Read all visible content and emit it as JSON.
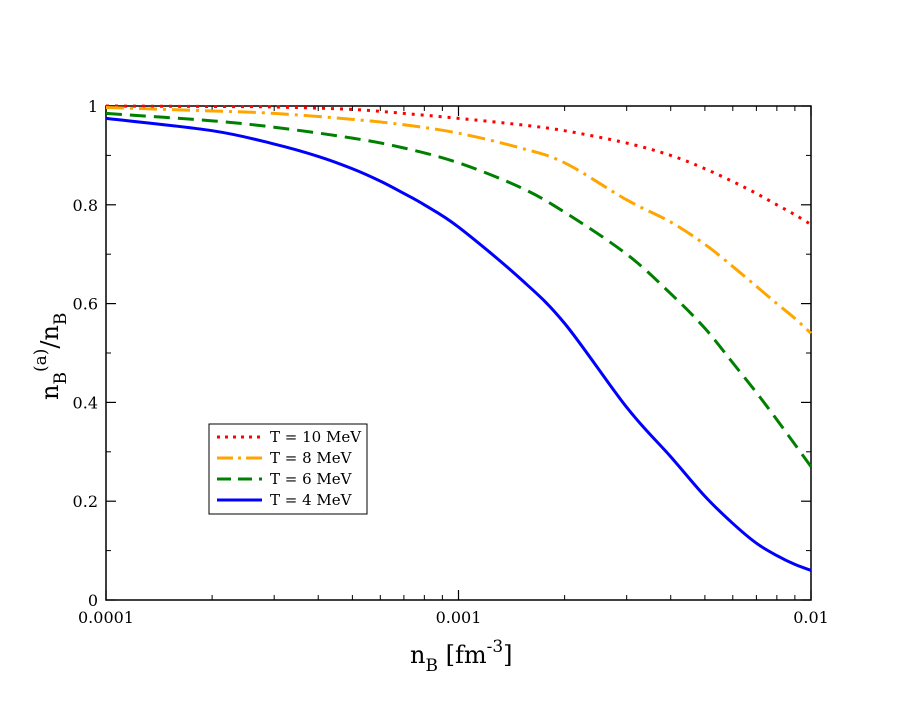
{
  "chart_data": {
    "type": "line",
    "title": "",
    "xscale": "log",
    "xlim": [
      0.0001,
      0.01
    ],
    "ylim": [
      0,
      1
    ],
    "xticks": [
      {
        "value": 0.0001,
        "label": "0.0001"
      },
      {
        "value": 0.001,
        "label": "0.001"
      },
      {
        "value": 0.01,
        "label": "0.01"
      }
    ],
    "yticks": [
      {
        "value": 0,
        "label": "0"
      },
      {
        "value": 0.2,
        "label": "0.2"
      },
      {
        "value": 0.4,
        "label": "0.4"
      },
      {
        "value": 0.6,
        "label": "0.6"
      },
      {
        "value": 0.8,
        "label": "0.8"
      },
      {
        "value": 1,
        "label": "1"
      }
    ],
    "xlabel": {
      "base": "n",
      "sub": "B",
      "rest": " [fm",
      "sup": "-3",
      "close": "]"
    },
    "ylabel": {
      "base": "n",
      "sub": "B",
      "sup": "(a)",
      "slash": "/n",
      "sub2": "B"
    },
    "series": [
      {
        "name": "T = 10 MeV",
        "color": "#ff0000",
        "style": "dotted",
        "x": [
          0.0001,
          0.0002,
          0.0003,
          0.0005,
          0.0007,
          0.001,
          0.0015,
          0.002,
          0.003,
          0.004,
          0.005,
          0.006,
          0.007,
          0.008,
          0.009,
          0.01
        ],
        "y": [
          1.0,
          0.999,
          0.998,
          0.993,
          0.985,
          0.975,
          0.962,
          0.95,
          0.925,
          0.9,
          0.873,
          0.847,
          0.823,
          0.8,
          0.78,
          0.76
        ]
      },
      {
        "name": "T = 8 MeV",
        "color": "#ffa500",
        "style": "dashdot",
        "x": [
          0.0001,
          0.0002,
          0.0003,
          0.0005,
          0.0007,
          0.001,
          0.0015,
          0.002,
          0.003,
          0.004,
          0.005,
          0.006,
          0.007,
          0.008,
          0.009,
          0.01
        ],
        "y": [
          0.997,
          0.99,
          0.985,
          0.973,
          0.962,
          0.945,
          0.915,
          0.885,
          0.81,
          0.765,
          0.72,
          0.675,
          0.635,
          0.6,
          0.57,
          0.54
        ]
      },
      {
        "name": "T = 6 MeV",
        "color": "#008000",
        "style": "dashed",
        "x": [
          0.0001,
          0.0002,
          0.0003,
          0.0005,
          0.0007,
          0.001,
          0.0015,
          0.002,
          0.003,
          0.004,
          0.005,
          0.006,
          0.007,
          0.008,
          0.009,
          0.01
        ],
        "y": [
          0.985,
          0.97,
          0.957,
          0.935,
          0.915,
          0.885,
          0.835,
          0.785,
          0.7,
          0.62,
          0.55,
          0.48,
          0.42,
          0.365,
          0.315,
          0.27
        ]
      },
      {
        "name": "T = 4 MeV",
        "color": "#0000ff",
        "style": "solid",
        "x": [
          0.0001,
          0.0002,
          0.0003,
          0.0004,
          0.0005,
          0.0006,
          0.0007,
          0.0008,
          0.001,
          0.0015,
          0.002,
          0.003,
          0.004,
          0.005,
          0.006,
          0.007,
          0.008,
          0.009,
          0.01
        ],
        "y": [
          0.975,
          0.95,
          0.923,
          0.898,
          0.873,
          0.848,
          0.823,
          0.8,
          0.755,
          0.65,
          0.56,
          0.39,
          0.29,
          0.21,
          0.155,
          0.115,
          0.09,
          0.072,
          0.06
        ]
      }
    ],
    "legend": {
      "position": "lower-left",
      "entries": [
        "T = 10 MeV",
        "T = 8 MeV",
        "T = 6 MeV",
        "T = 4 MeV"
      ]
    }
  }
}
